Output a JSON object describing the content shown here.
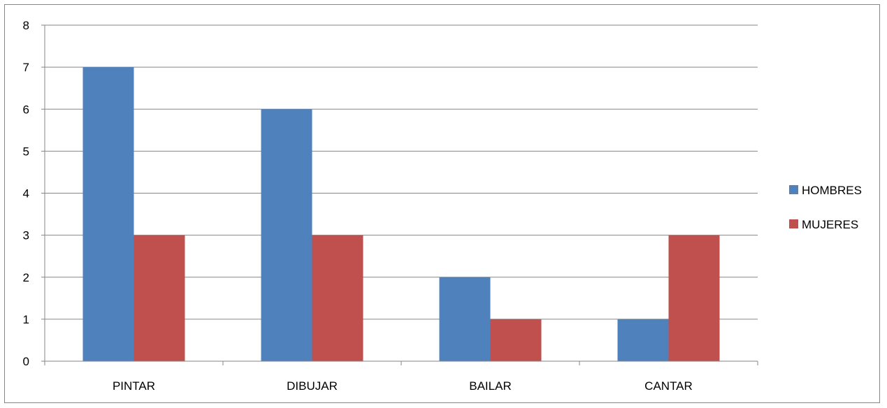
{
  "chart_data": {
    "type": "bar",
    "categories": [
      "PINTAR",
      "DIBUJAR",
      "BAILAR",
      "CANTAR"
    ],
    "series": [
      {
        "name": "HOMBRES",
        "values": [
          7,
          6,
          2,
          1
        ],
        "color": "#4F81BD"
      },
      {
        "name": "MUJERES",
        "values": [
          3,
          3,
          1,
          3
        ],
        "color": "#C0504D"
      }
    ],
    "title": "",
    "xlabel": "",
    "ylabel": "",
    "ylim": [
      0,
      8
    ],
    "yticks": [
      "0",
      "1",
      "2",
      "3",
      "4",
      "5",
      "6",
      "7",
      "8"
    ],
    "grid": true,
    "legend_position": "right"
  }
}
